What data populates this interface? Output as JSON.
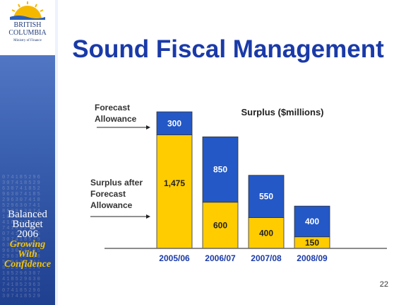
{
  "branding": {
    "logo_line1": "BRITISH",
    "logo_line2": "COLUMBIA",
    "ministry": "Ministry of Finance",
    "badge_line1": "Balanced",
    "badge_line2": "Budget",
    "badge_line3": "2006",
    "slogan_line1": "Growing",
    "slogan_line2": "With",
    "slogan_line3": "Confidence"
  },
  "title": "Sound Fiscal Management",
  "page_number": "22",
  "colors": {
    "title": "#1a3aa8",
    "forecast_allowance": "#2358c6",
    "surplus_after_allowance": "#ffcc00",
    "sidebar": "#3d63b3"
  },
  "chart_data": {
    "type": "bar",
    "stacked": true,
    "title": "Surplus ($millions)",
    "categories": [
      "2005/06",
      "2006/07",
      "2007/08",
      "2008/09"
    ],
    "series": [
      {
        "name": "Surplus after Forecast Allowance",
        "values": [
          1475,
          600,
          400,
          150
        ],
        "labels": [
          "1,475",
          "600",
          "400",
          "150"
        ],
        "color": "#ffcc00"
      },
      {
        "name": "Forecast Allowance",
        "values": [
          300,
          850,
          550,
          400
        ],
        "labels": [
          "300",
          "850",
          "550",
          "400"
        ],
        "color": "#2358c6"
      }
    ],
    "legend_labels": [
      {
        "line1": "Forecast",
        "line2": "Allowance",
        "line3": ""
      },
      {
        "line1": "Surplus after",
        "line2": "Forecast",
        "line3": "Allowance"
      }
    ],
    "ylim": [
      0,
      1775
    ]
  }
}
